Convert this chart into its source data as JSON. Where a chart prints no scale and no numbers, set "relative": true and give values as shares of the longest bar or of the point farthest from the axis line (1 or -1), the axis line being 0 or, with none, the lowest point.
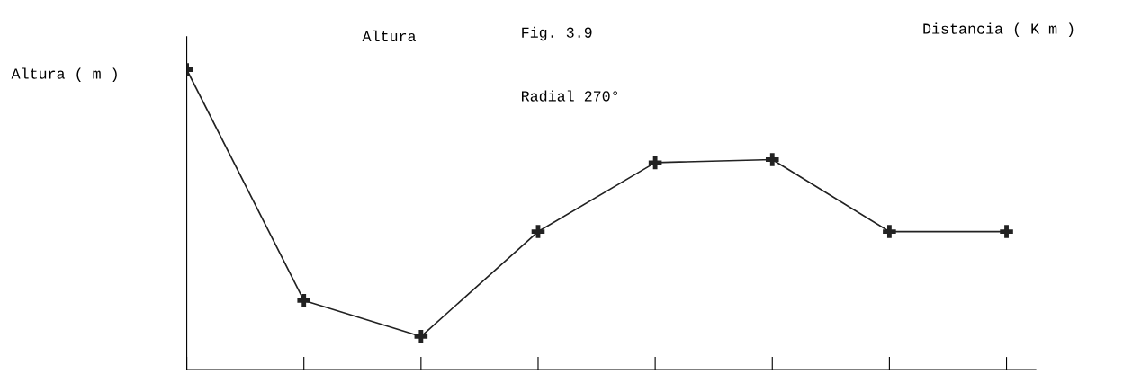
{
  "chart_data": {
    "type": "line",
    "title": "Fig. 3.9",
    "xlabel": "Distancia ( K m )",
    "ylabel": "Altura ( m )",
    "annotations": [
      "Altura",
      "Radial 270°"
    ],
    "categories": [
      null,
      null,
      null,
      null,
      null,
      null,
      null,
      null
    ],
    "relative": true,
    "series": [
      {
        "color": "#222222",
        "values": [
          1,
          0.23,
          0.11,
          0.46,
          0.69,
          0.7,
          0.46,
          0.46
        ]
      }
    ],
    "marker": "cross",
    "line_style": "solid",
    "grid": false,
    "legend": false
  }
}
